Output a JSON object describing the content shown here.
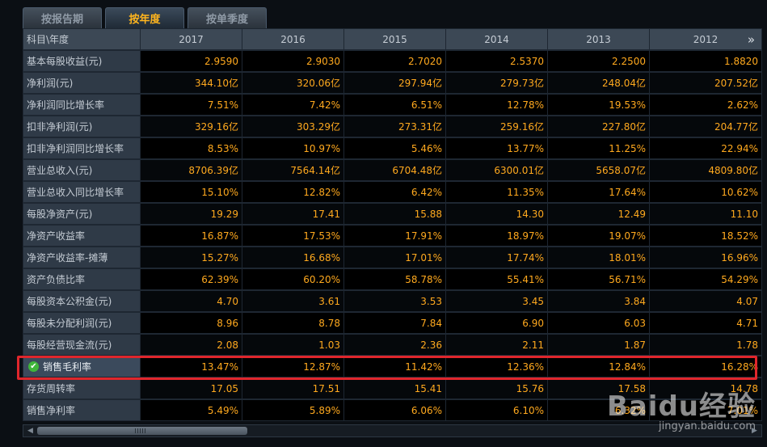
{
  "tabs": [
    {
      "label": "按报告期",
      "active": false
    },
    {
      "label": "按年度",
      "active": true
    },
    {
      "label": "按单季度",
      "active": false
    }
  ],
  "table": {
    "header_label": "科目\\年度",
    "years": [
      "2017",
      "2016",
      "2015",
      "2014",
      "2013",
      "2012"
    ],
    "rows": [
      {
        "label": "基本每股收益(元)",
        "values": [
          "2.9590",
          "2.9030",
          "2.7020",
          "2.5370",
          "2.2500",
          "1.8820"
        ]
      },
      {
        "label": "净利润(元)",
        "values": [
          "344.10亿",
          "320.06亿",
          "297.94亿",
          "279.73亿",
          "248.04亿",
          "207.52亿"
        ]
      },
      {
        "label": "净利润同比增长率",
        "values": [
          "7.51%",
          "7.42%",
          "6.51%",
          "12.78%",
          "19.53%",
          "2.62%"
        ]
      },
      {
        "label": "扣非净利润(元)",
        "values": [
          "329.16亿",
          "303.29亿",
          "273.31亿",
          "259.16亿",
          "227.80亿",
          "204.77亿"
        ]
      },
      {
        "label": "扣非净利润同比增长率",
        "values": [
          "8.53%",
          "10.97%",
          "5.46%",
          "13.77%",
          "11.25%",
          "22.94%"
        ]
      },
      {
        "label": "营业总收入(元)",
        "values": [
          "8706.39亿",
          "7564.14亿",
          "6704.48亿",
          "6300.01亿",
          "5658.07亿",
          "4809.80亿"
        ]
      },
      {
        "label": "营业总收入同比增长率",
        "values": [
          "15.10%",
          "12.82%",
          "6.42%",
          "11.35%",
          "17.64%",
          "10.62%"
        ]
      },
      {
        "label": "每股净资产(元)",
        "values": [
          "19.29",
          "17.41",
          "15.88",
          "14.30",
          "12.49",
          "11.10"
        ]
      },
      {
        "label": "净资产收益率",
        "values": [
          "16.87%",
          "17.53%",
          "17.91%",
          "18.97%",
          "19.07%",
          "18.52%"
        ]
      },
      {
        "label": "净资产收益率-摊薄",
        "values": [
          "15.27%",
          "16.68%",
          "17.01%",
          "17.74%",
          "18.01%",
          "16.96%"
        ]
      },
      {
        "label": "资产负债比率",
        "values": [
          "62.39%",
          "60.20%",
          "58.78%",
          "55.41%",
          "56.71%",
          "54.29%"
        ]
      },
      {
        "label": "每股资本公积金(元)",
        "values": [
          "4.70",
          "3.61",
          "3.53",
          "3.45",
          "3.84",
          "4.07"
        ]
      },
      {
        "label": "每股未分配利润(元)",
        "values": [
          "8.96",
          "8.78",
          "7.84",
          "6.90",
          "6.03",
          "4.71"
        ]
      },
      {
        "label": "每股经营现金流(元)",
        "values": [
          "2.08",
          "1.03",
          "2.36",
          "2.11",
          "1.87",
          "1.78"
        ]
      },
      {
        "label": "销售毛利率",
        "values": [
          "13.47%",
          "12.87%",
          "11.42%",
          "12.36%",
          "12.84%",
          "16.28%"
        ],
        "highlighted": true
      },
      {
        "label": "存货周转率",
        "values": [
          "17.05",
          "17.51",
          "15.41",
          "15.76",
          "17.58",
          "14.78"
        ]
      },
      {
        "label": "销售净利率",
        "values": [
          "5.49%",
          "5.89%",
          "6.06%",
          "6.10%",
          "6.32%",
          "7.01%"
        ]
      }
    ]
  },
  "scroll": {
    "position": 0.0
  },
  "icons": {
    "more": "double-chevron-right-icon",
    "check": "check-circle-icon"
  },
  "colors": {
    "value_text": "#ffa91e",
    "highlight_frame": "#e0262c",
    "active_tab_text": "#ffb51e"
  },
  "watermark": {
    "logo": "Baidu经验",
    "url": "jingyan.baidu.com"
  }
}
